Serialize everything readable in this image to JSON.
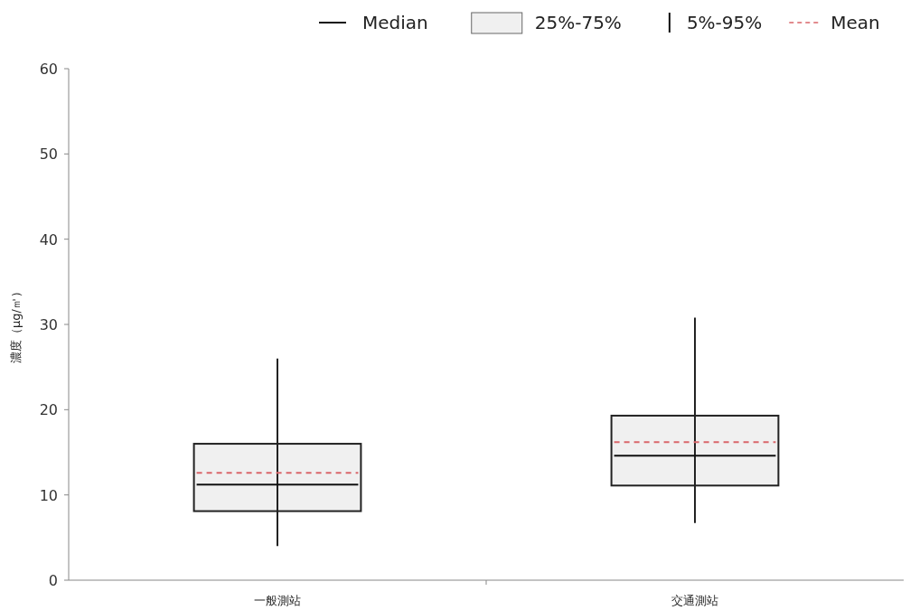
{
  "chart_data": {
    "type": "box",
    "ylabel": "濃度（μg/㎥）",
    "categories": [
      "一般測站",
      "交通測站"
    ],
    "series": [
      {
        "color": "#f0f0f0",
        "boxes": [
          {
            "low": 4.0,
            "q1": 8.1,
            "median": 11.2,
            "q3": 16.0,
            "high": 26.0,
            "mean": 12.6
          },
          {
            "low": 6.7,
            "q1": 11.1,
            "median": 14.6,
            "q3": 19.3,
            "high": 30.8,
            "mean": 16.2
          }
        ]
      }
    ],
    "ylim": [
      0,
      60
    ],
    "yticks": [
      0,
      10,
      20,
      30,
      40,
      50,
      60
    ],
    "grid": false,
    "annotations": [
      "Median",
      "25%-75%",
      "5%-95%",
      "Mean"
    ]
  }
}
